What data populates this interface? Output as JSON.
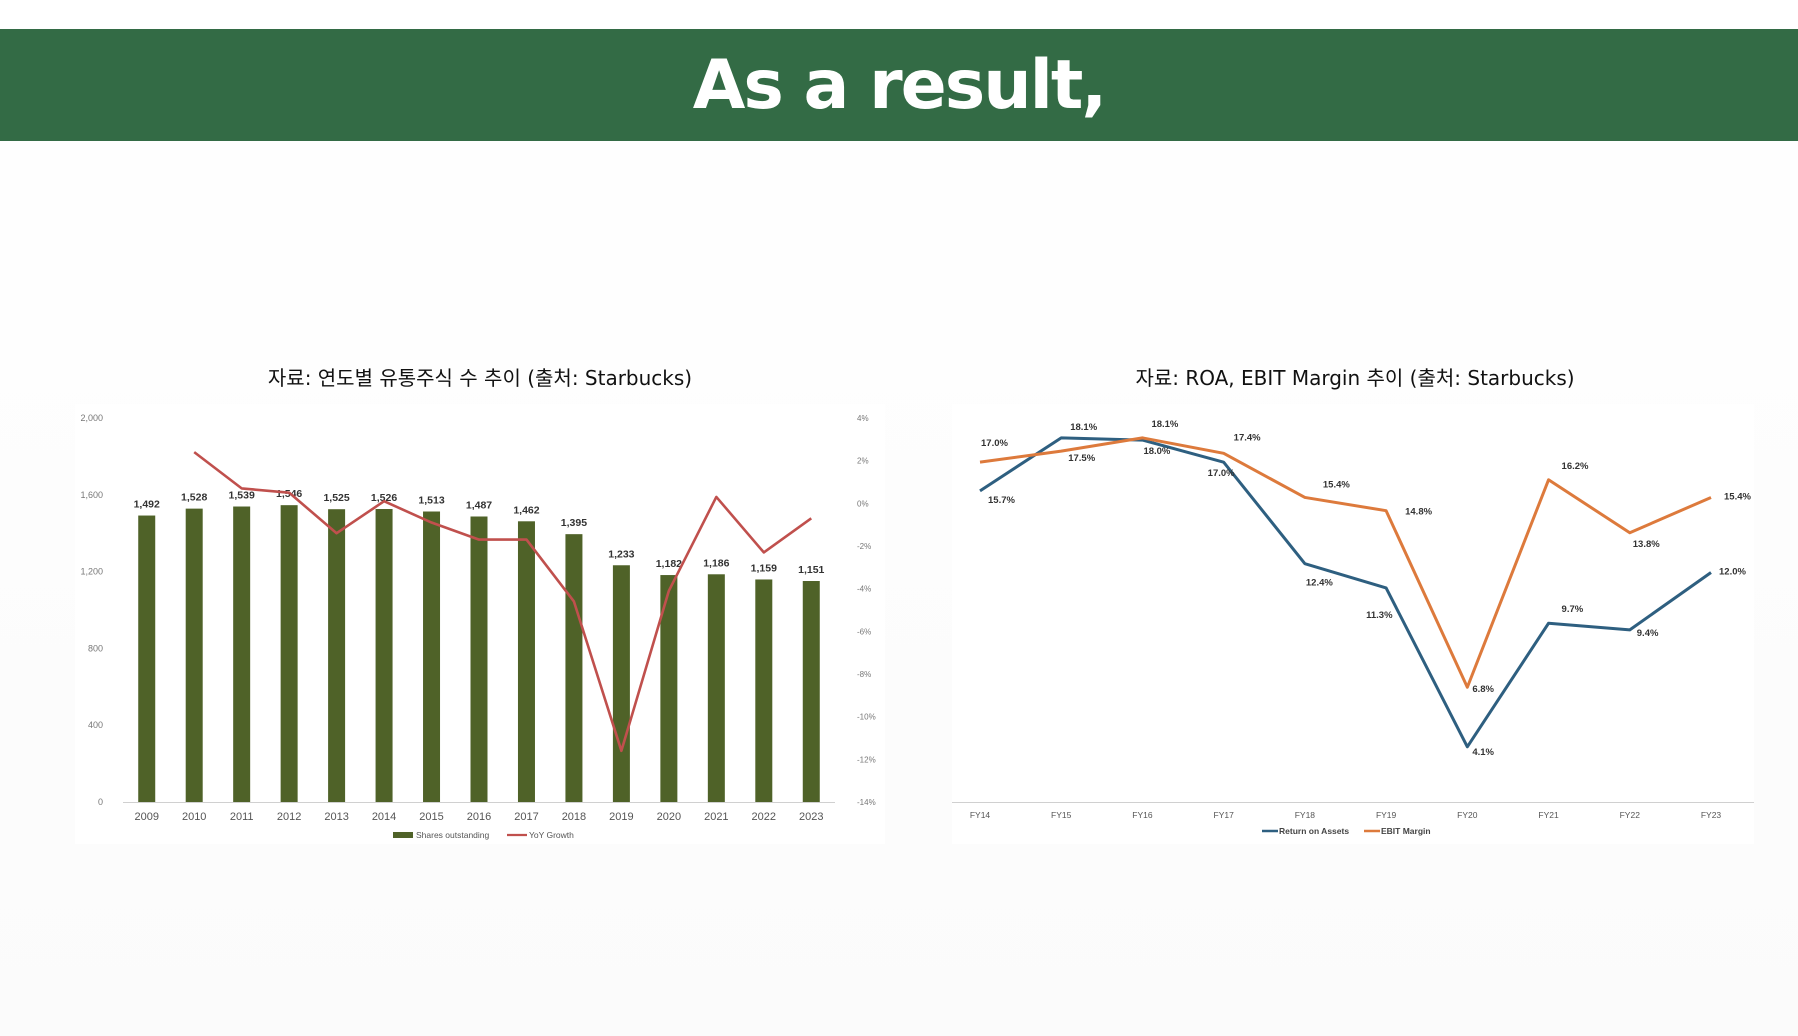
{
  "page": {
    "title": "As a result,"
  },
  "captions": {
    "left": "자료: 연도별 유통주식 수 추이 (출처: Starbucks)",
    "right": "자료: ROA, EBIT Margin 추이 (출처: Starbucks)"
  },
  "colors": {
    "banner": "#336b45",
    "bar": "#4f6228",
    "yoy_line": "#c0504d",
    "roa_line": "#2e5f80",
    "ebit_line": "#dd7a3c"
  },
  "chart_data": [
    {
      "type": "bar",
      "categories": [
        "2009",
        "2010",
        "2011",
        "2012",
        "2013",
        "2014",
        "2015",
        "2016",
        "2017",
        "2018",
        "2019",
        "2020",
        "2021",
        "2022",
        "2023"
      ],
      "series": [
        {
          "name": "Shares outstanding",
          "type": "bar",
          "values": [
            1492,
            1528,
            1539,
            1546,
            1525,
            1526,
            1513,
            1487,
            1462,
            1395,
            1233,
            1182,
            1186,
            1159,
            1151
          ],
          "labels": [
            "1,492",
            "1,528",
            "1,539",
            "1,546",
            "1,525",
            "1,526",
            "1,513",
            "1,487",
            "1,462",
            "1,395",
            "1,233",
            "1,182",
            "1,186",
            "1,159",
            "1,151"
          ]
        },
        {
          "name": "YoY Growth",
          "type": "line",
          "axis": "right",
          "values": [
            null,
            2.4,
            0.7,
            0.5,
            -1.4,
            0.1,
            -0.9,
            -1.7,
            -1.7,
            -4.6,
            -11.6,
            -4.1,
            0.3,
            -2.3,
            -0.7
          ]
        }
      ],
      "ylim": [
        0,
        2000
      ],
      "yticks": [
        0,
        400,
        800,
        1200,
        1600,
        2000
      ],
      "ytick_labels": [
        "0",
        "400",
        "800",
        "1,200",
        "1,600",
        "2,000"
      ],
      "y2lim": [
        -14,
        4
      ],
      "y2ticks": [
        -14,
        -12,
        -10,
        -8,
        -6,
        -4,
        -2,
        0,
        2,
        4
      ],
      "y2tick_labels": [
        "-14%",
        "-12%",
        "-10%",
        "-8%",
        "-6%",
        "-4%",
        "-2%",
        "0%",
        "2%",
        "4%"
      ],
      "legend": "bottom",
      "grid": false
    },
    {
      "type": "line",
      "categories": [
        "FY14",
        "FY15",
        "FY16",
        "FY17",
        "FY18",
        "FY19",
        "FY20",
        "FY21",
        "FY22",
        "FY23"
      ],
      "series": [
        {
          "name": "Return on Assets",
          "values": [
            15.7,
            18.1,
            18.0,
            17.0,
            12.4,
            11.3,
            4.1,
            9.7,
            9.4,
            12.0
          ],
          "labels": [
            "15.7%",
            "18.1%",
            "18.0%",
            "17.0%",
            "12.4%",
            "11.3%",
            "4.1%",
            "9.7%",
            "9.4%",
            "12.0%"
          ]
        },
        {
          "name": "EBIT Margin",
          "values": [
            17.0,
            17.5,
            18.1,
            17.4,
            15.4,
            14.8,
            6.8,
            16.2,
            13.8,
            15.4
          ],
          "labels": [
            "17.0%",
            "17.5%",
            "18.1%",
            "17.4%",
            "15.4%",
            "14.8%",
            "6.8%",
            "16.2%",
            "13.8%",
            "15.4%"
          ]
        }
      ],
      "legend": "bottom",
      "grid": false
    }
  ]
}
